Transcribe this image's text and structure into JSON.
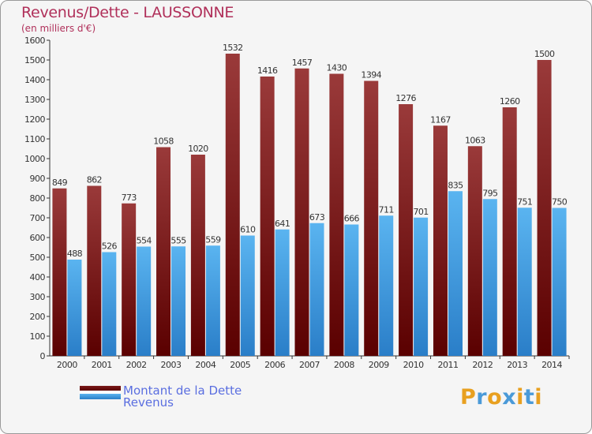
{
  "header": {
    "title": "Revenus/Dette - LAUSSONNE",
    "unit": "(en milliers d'€)"
  },
  "chart_data": {
    "type": "bar",
    "title": "Revenus/Dette - LAUSSONNE",
    "ylabel": "(en milliers d'€)",
    "xlabel": "",
    "categories": [
      "2000",
      "2001",
      "2002",
      "2003",
      "2004",
      "2005",
      "2006",
      "2007",
      "2008",
      "2009",
      "2010",
      "2011",
      "2012",
      "2013",
      "2014"
    ],
    "series": [
      {
        "name": "Montant de la Dette",
        "color": "#7a1a1a",
        "values": [
          849,
          862,
          773,
          1058,
          1020,
          1532,
          1416,
          1457,
          1430,
          1394,
          1276,
          1167,
          1063,
          1260,
          1500
        ]
      },
      {
        "name": "Revenus",
        "color": "#4aa3e8",
        "values": [
          488,
          526,
          554,
          555,
          559,
          610,
          641,
          673,
          666,
          711,
          701,
          835,
          795,
          751,
          750
        ]
      }
    ],
    "ylim": [
      0,
      1600
    ],
    "yticks": [
      0,
      100,
      200,
      300,
      400,
      500,
      600,
      700,
      800,
      900,
      1000,
      1100,
      1200,
      1300,
      1400,
      1500,
      1600
    ],
    "grid": false,
    "legend": "bottom-left"
  },
  "legend": {
    "debt": "Montant de la Dette",
    "revenue": "Revenus"
  },
  "logo": {
    "letters": [
      "P",
      "r",
      "o",
      "x",
      "i",
      "t",
      "i"
    ],
    "colors": [
      "#e8a020",
      "#4a9ad8",
      "#e8a020",
      "#4a9ad8",
      "#e8a020",
      "#4a9ad8",
      "#e8a020"
    ]
  }
}
